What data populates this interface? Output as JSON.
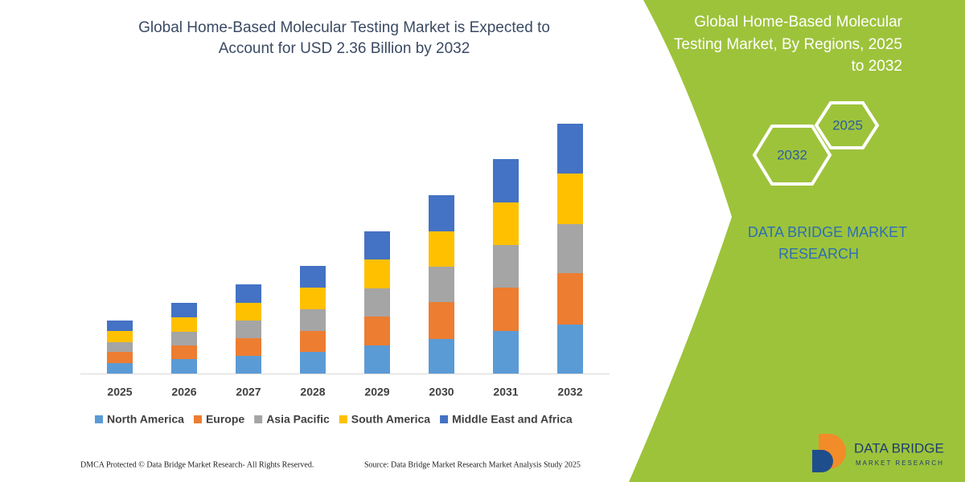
{
  "chart_data": {
    "type": "bar",
    "stacked": true,
    "title": [
      "Global Home-Based Molecular Testing Market is Expected to",
      "Account for USD 2.36 Billion by 2032"
    ],
    "categories": [
      "2025",
      "2026",
      "2027",
      "2028",
      "2029",
      "2030",
      "2031",
      "2032"
    ],
    "series": [
      {
        "name": "North America",
        "color": "#5b9bd5",
        "values": [
          13,
          18,
          22,
          27,
          35,
          43,
          53,
          61
        ]
      },
      {
        "name": "Europe",
        "color": "#ed7d31",
        "values": [
          14,
          17,
          22,
          26,
          36,
          46,
          54,
          64
        ]
      },
      {
        "name": "Asia Pacific",
        "color": "#a5a5a5",
        "values": [
          12,
          17,
          22,
          27,
          35,
          44,
          53,
          61
        ]
      },
      {
        "name": "South America",
        "color": "#ffc000",
        "values": [
          14,
          18,
          22,
          27,
          36,
          44,
          53,
          63
        ]
      },
      {
        "name": "Middle East and Africa",
        "color": "#4472c4",
        "values": [
          13,
          18,
          23,
          27,
          35,
          45,
          54,
          62
        ]
      }
    ],
    "ylim": [
      0,
      320
    ]
  },
  "side_panel": {
    "title": [
      "Global Home-Based Molecular",
      "Testing Market, By Regions, 2025",
      "to 2032"
    ],
    "hexagons": [
      "2025",
      "2032"
    ],
    "brand": [
      "DATA BRIDGE MARKET",
      "RESEARCH"
    ]
  },
  "footer": {
    "left": "DMCA Protected © Data Bridge Market Research-  All Rights Reserved.",
    "right": "Source: Data Bridge Market Research  Market Analysis Study 2025"
  },
  "logo": {
    "name": "DATA BRIDGE",
    "tagline": "MARKET RESEARCH"
  }
}
